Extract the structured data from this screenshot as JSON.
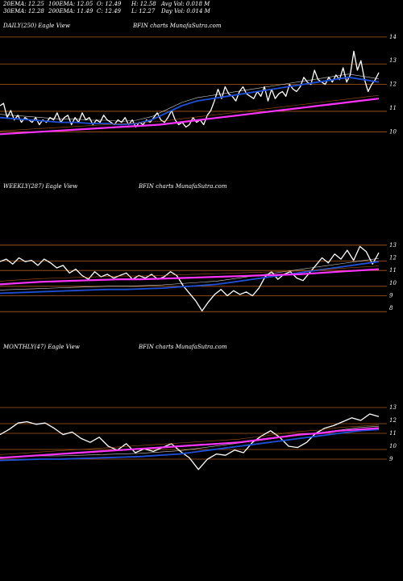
{
  "header": {
    "row1": [
      "20EMA: 12.25",
      "100EMA: 12.05",
      "O: 12.49",
      "H: 12.58",
      "Avg Vol: 0.018  M"
    ],
    "row2": [
      "30EMA: 12.28",
      "200EMA: 11.49",
      "C: 12.49",
      "L: 12.27",
      "Day Vol: 0.014  M"
    ]
  },
  "panels": {
    "daily": {
      "label": "DAILY(250) Eagle  View",
      "site": "BFIN  charts MunafaSutra.com"
    },
    "weekly": {
      "label": "WEEKLY(287) Eagle  View",
      "site": "BFIN  charts MunafaSutra.com"
    },
    "monthly": {
      "label": "MONTHLY(47) Eagle  View",
      "site": "BFIN  charts MunafaSutra.com"
    }
  },
  "colors": {
    "background": "#000000",
    "price": "#ffffff",
    "ema_fast": "#1e4fd8",
    "ema_slow": "#ff33ff",
    "ema_mid": "#c8641e",
    "grid": "#b05a1e"
  },
  "chart_data": [
    {
      "type": "line",
      "title": "DAILY(250) Eagle  View",
      "ylim": [
        9.5,
        14.2
      ],
      "ticks": [
        14,
        13,
        12,
        11,
        10
      ],
      "series": [
        {
          "role": "price",
          "values": [
            11.1,
            11.2,
            10.6,
            10.9,
            10.5,
            10.7,
            10.4,
            10.6,
            10.5,
            10.4,
            10.6,
            10.3,
            10.5,
            10.4,
            10.6,
            10.5,
            10.8,
            10.4,
            10.6,
            10.7,
            10.3,
            10.6,
            10.4,
            10.8,
            10.5,
            10.6,
            10.3,
            10.5,
            10.4,
            10.7,
            10.5,
            10.4,
            10.3,
            10.5,
            10.4,
            10.6,
            10.3,
            10.5,
            10.2,
            10.4,
            10.3,
            10.5,
            10.4,
            10.6,
            10.8,
            10.5,
            10.4,
            10.6,
            10.9,
            10.5,
            10.3,
            10.4,
            10.2,
            10.3,
            10.6,
            10.4,
            10.5,
            10.3,
            10.7,
            10.9,
            11.3,
            11.8,
            11.4,
            11.9,
            11.6,
            11.5,
            11.3,
            11.7,
            11.9,
            11.6,
            11.5,
            11.4,
            11.7,
            11.5,
            11.9,
            11.3,
            11.8,
            11.4,
            11.6,
            11.7,
            11.5,
            12.0,
            11.8,
            11.7,
            11.9,
            12.3,
            12.1,
            12.0,
            12.6,
            12.2,
            12.1,
            12.0,
            12.3,
            12.1,
            12.4,
            12.2,
            12.7,
            12.1,
            12.4,
            13.4,
            12.6,
            13.0,
            12.2,
            11.7,
            12.0,
            12.2,
            12.5
          ]
        },
        {
          "role": "ema-blue",
          "values": [
            10.6,
            10.55,
            10.5,
            10.45,
            10.4,
            10.4,
            10.35,
            10.35,
            10.3,
            10.35,
            10.5,
            10.8,
            11.1,
            11.3,
            11.4,
            11.5,
            11.6,
            11.7,
            11.8,
            11.9,
            12.0,
            12.1,
            12.2,
            12.3,
            12.2,
            12.1
          ]
        },
        {
          "role": "ema-magenta",
          "values": [
            9.9,
            9.95,
            10.0,
            10.05,
            10.1,
            10.15,
            10.2,
            10.25,
            10.3,
            10.4,
            10.5,
            10.6,
            10.7,
            10.8,
            10.9,
            11.0,
            11.1,
            11.2,
            11.3,
            11.4
          ]
        }
      ]
    },
    {
      "type": "line",
      "title": "WEEKLY(287) Eagle  View",
      "ylim": [
        7.5,
        13.5
      ],
      "ticks": [
        13,
        12,
        11,
        10,
        9,
        8
      ],
      "series": [
        {
          "role": "price",
          "values": [
            11.7,
            11.9,
            11.5,
            12.0,
            11.7,
            11.8,
            11.4,
            11.9,
            11.6,
            11.2,
            11.4,
            10.8,
            11.1,
            10.6,
            10.3,
            10.9,
            10.5,
            10.7,
            10.4,
            10.6,
            10.8,
            10.3,
            10.6,
            10.4,
            10.7,
            10.3,
            10.5,
            10.9,
            10.6,
            9.8,
            9.2,
            8.6,
            7.8,
            8.5,
            9.1,
            9.5,
            9.0,
            9.4,
            9.1,
            9.3,
            9.0,
            9.6,
            10.5,
            10.9,
            10.3,
            10.7,
            10.9,
            10.4,
            10.2,
            10.8,
            11.4,
            12.0,
            11.6,
            12.3,
            11.9,
            12.6,
            11.8,
            12.9,
            12.5,
            11.5,
            12.4
          ]
        },
        {
          "role": "ema-blue",
          "values": [
            9.2,
            9.25,
            9.3,
            9.35,
            9.4,
            9.45,
            9.5,
            9.5,
            9.55,
            9.6,
            9.7,
            9.8,
            9.9,
            10.1,
            10.3,
            10.5,
            10.7,
            10.9,
            11.1,
            11.3,
            11.5,
            11.7
          ]
        },
        {
          "role": "ema-magenta",
          "values": [
            9.9,
            10.0,
            10.1,
            10.15,
            10.2,
            10.25,
            10.3,
            10.3,
            10.35,
            10.4,
            10.45,
            10.5,
            10.55,
            10.6,
            10.65,
            10.7,
            10.8,
            10.9,
            11.0,
            11.1
          ]
        }
      ]
    },
    {
      "type": "line",
      "title": "MONTHLY(47) Eagle  View",
      "ylim": [
        8.0,
        13.5
      ],
      "ticks": [
        13,
        12,
        11,
        10,
        9
      ],
      "series": [
        {
          "role": "price",
          "values": [
            10.9,
            11.3,
            11.8,
            11.9,
            11.7,
            11.8,
            11.4,
            10.9,
            11.1,
            10.6,
            10.3,
            10.7,
            10.0,
            9.7,
            10.2,
            9.5,
            9.8,
            9.6,
            9.9,
            10.2,
            9.6,
            9.1,
            8.2,
            9.0,
            9.4,
            9.3,
            9.7,
            9.5,
            10.3,
            10.8,
            11.2,
            10.7,
            10.0,
            9.9,
            10.3,
            11.0,
            11.4,
            11.6,
            11.9,
            12.2,
            12.0,
            12.5,
            12.3
          ]
        },
        {
          "role": "ema-blue",
          "values": [
            8.9,
            8.95,
            9.0,
            9.0,
            9.05,
            9.1,
            9.15,
            9.2,
            9.3,
            9.4,
            9.6,
            9.8,
            10.0,
            10.2,
            10.4,
            10.6,
            10.8,
            11.0,
            11.2,
            11.3
          ]
        },
        {
          "role": "ema-magenta",
          "values": [
            9.1,
            9.2,
            9.3,
            9.4,
            9.5,
            9.6,
            9.7,
            9.8,
            9.9,
            10.0,
            10.1,
            10.2,
            10.3,
            10.5,
            10.7,
            10.9,
            11.0,
            11.2,
            11.3,
            11.4
          ]
        }
      ]
    }
  ]
}
